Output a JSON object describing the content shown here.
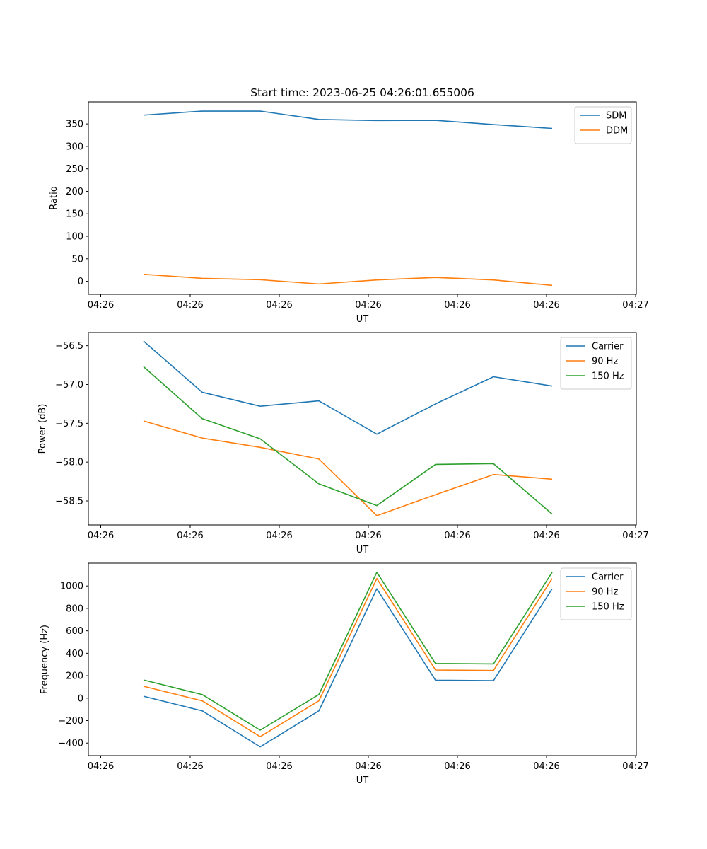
{
  "figure": {
    "title": "Start time: 2023-06-25 04:26:01.655006"
  },
  "chart_data": [
    {
      "type": "line",
      "title": "Start time: 2023-06-25 04:26:01.655006",
      "xlabel": "UT",
      "ylabel": "Ratio",
      "x_tick_labels": [
        "04:26",
        "04:26",
        "04:26",
        "04:26",
        "04:26",
        "04:26",
        "04:26",
        "04:27"
      ],
      "yticks": [
        0,
        50,
        100,
        150,
        200,
        250,
        300,
        350
      ],
      "ylim": [
        -29,
        399
      ],
      "grid": false,
      "legend_position": "top-right",
      "series": [
        {
          "name": "SDM",
          "color": "#1f77b4",
          "values": [
            369.5,
            378.5,
            378.5,
            360,
            357.5,
            358,
            348.5,
            340
          ]
        },
        {
          "name": "DDM",
          "color": "#ff7f0e",
          "values": [
            15.5,
            6.5,
            3.5,
            -6,
            3,
            8.5,
            3,
            -9
          ]
        }
      ]
    },
    {
      "type": "line",
      "xlabel": "UT",
      "ylabel": "Power (dB)",
      "x_tick_labels": [
        "04:26",
        "04:26",
        "04:26",
        "04:26",
        "04:26",
        "04:26",
        "04:26",
        "04:27"
      ],
      "yticks": [
        -58.5,
        -58.0,
        -57.5,
        -57.0,
        -56.5
      ],
      "ytick_labels": [
        "−58.5",
        "−58.0",
        "−57.5",
        "−57.0",
        "−56.5"
      ],
      "ylim": [
        -58.81,
        -56.33
      ],
      "grid": false,
      "legend_position": "top-right",
      "series": [
        {
          "name": "Carrier",
          "color": "#1f77b4",
          "values": [
            -56.44,
            -57.1,
            -57.28,
            -57.21,
            -57.64,
            -57.25,
            -56.9,
            -57.02
          ]
        },
        {
          "name": "90 Hz",
          "color": "#ff7f0e",
          "values": [
            -57.47,
            -57.69,
            -57.81,
            -57.96,
            -58.69,
            -58.42,
            -58.16,
            -58.22
          ]
        },
        {
          "name": "150 Hz",
          "color": "#2ca02c",
          "values": [
            -56.77,
            -57.44,
            -57.7,
            -58.28,
            -58.56,
            -58.03,
            -58.02,
            -58.67
          ]
        }
      ]
    },
    {
      "type": "line",
      "xlabel": "UT",
      "ylabel": "Frequency (Hz)",
      "x_tick_labels": [
        "04:26",
        "04:26",
        "04:26",
        "04:26",
        "04:26",
        "04:26",
        "04:26",
        "04:27"
      ],
      "yticks": [
        -400,
        -200,
        0,
        200,
        400,
        600,
        800,
        1000
      ],
      "ytick_labels": [
        "−400",
        "−200",
        "0",
        "200",
        "400",
        "600",
        "800",
        "1000"
      ],
      "ylim": [
        -512,
        1203
      ],
      "grid": false,
      "legend_position": "top-right",
      "series": [
        {
          "name": "Carrier",
          "color": "#1f77b4",
          "values": [
            17,
            -113,
            -434,
            -113,
            975,
            160,
            156,
            975
          ]
        },
        {
          "name": "90 Hz",
          "color": "#ff7f0e",
          "values": [
            106,
            -24,
            -343,
            -24,
            1066,
            251,
            247,
            1066
          ]
        },
        {
          "name": "150 Hz",
          "color": "#2ca02c",
          "values": [
            162,
            32,
            -285,
            32,
            1122,
            309,
            305,
            1122
          ]
        }
      ]
    }
  ]
}
